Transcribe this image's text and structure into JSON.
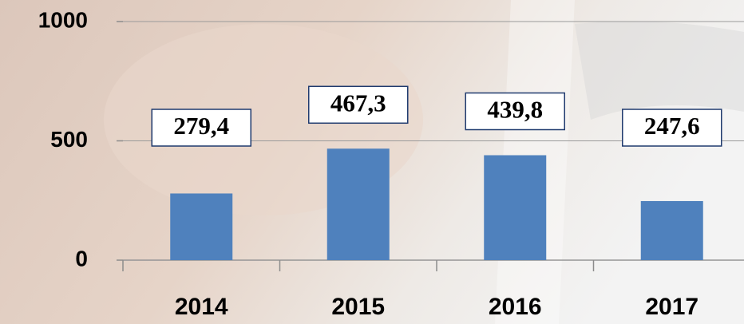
{
  "chart_data": {
    "type": "bar",
    "categories": [
      "2014",
      "2015",
      "2016",
      "2017"
    ],
    "values": [
      279.4,
      467.3,
      439.8,
      247.6
    ],
    "value_labels": [
      "279,4",
      "467,3",
      "439,8",
      "247,6"
    ],
    "color": "#4f81bd",
    "ylim": [
      0,
      1000
    ],
    "yticks": [
      0,
      500,
      1000
    ],
    "grid": true
  }
}
